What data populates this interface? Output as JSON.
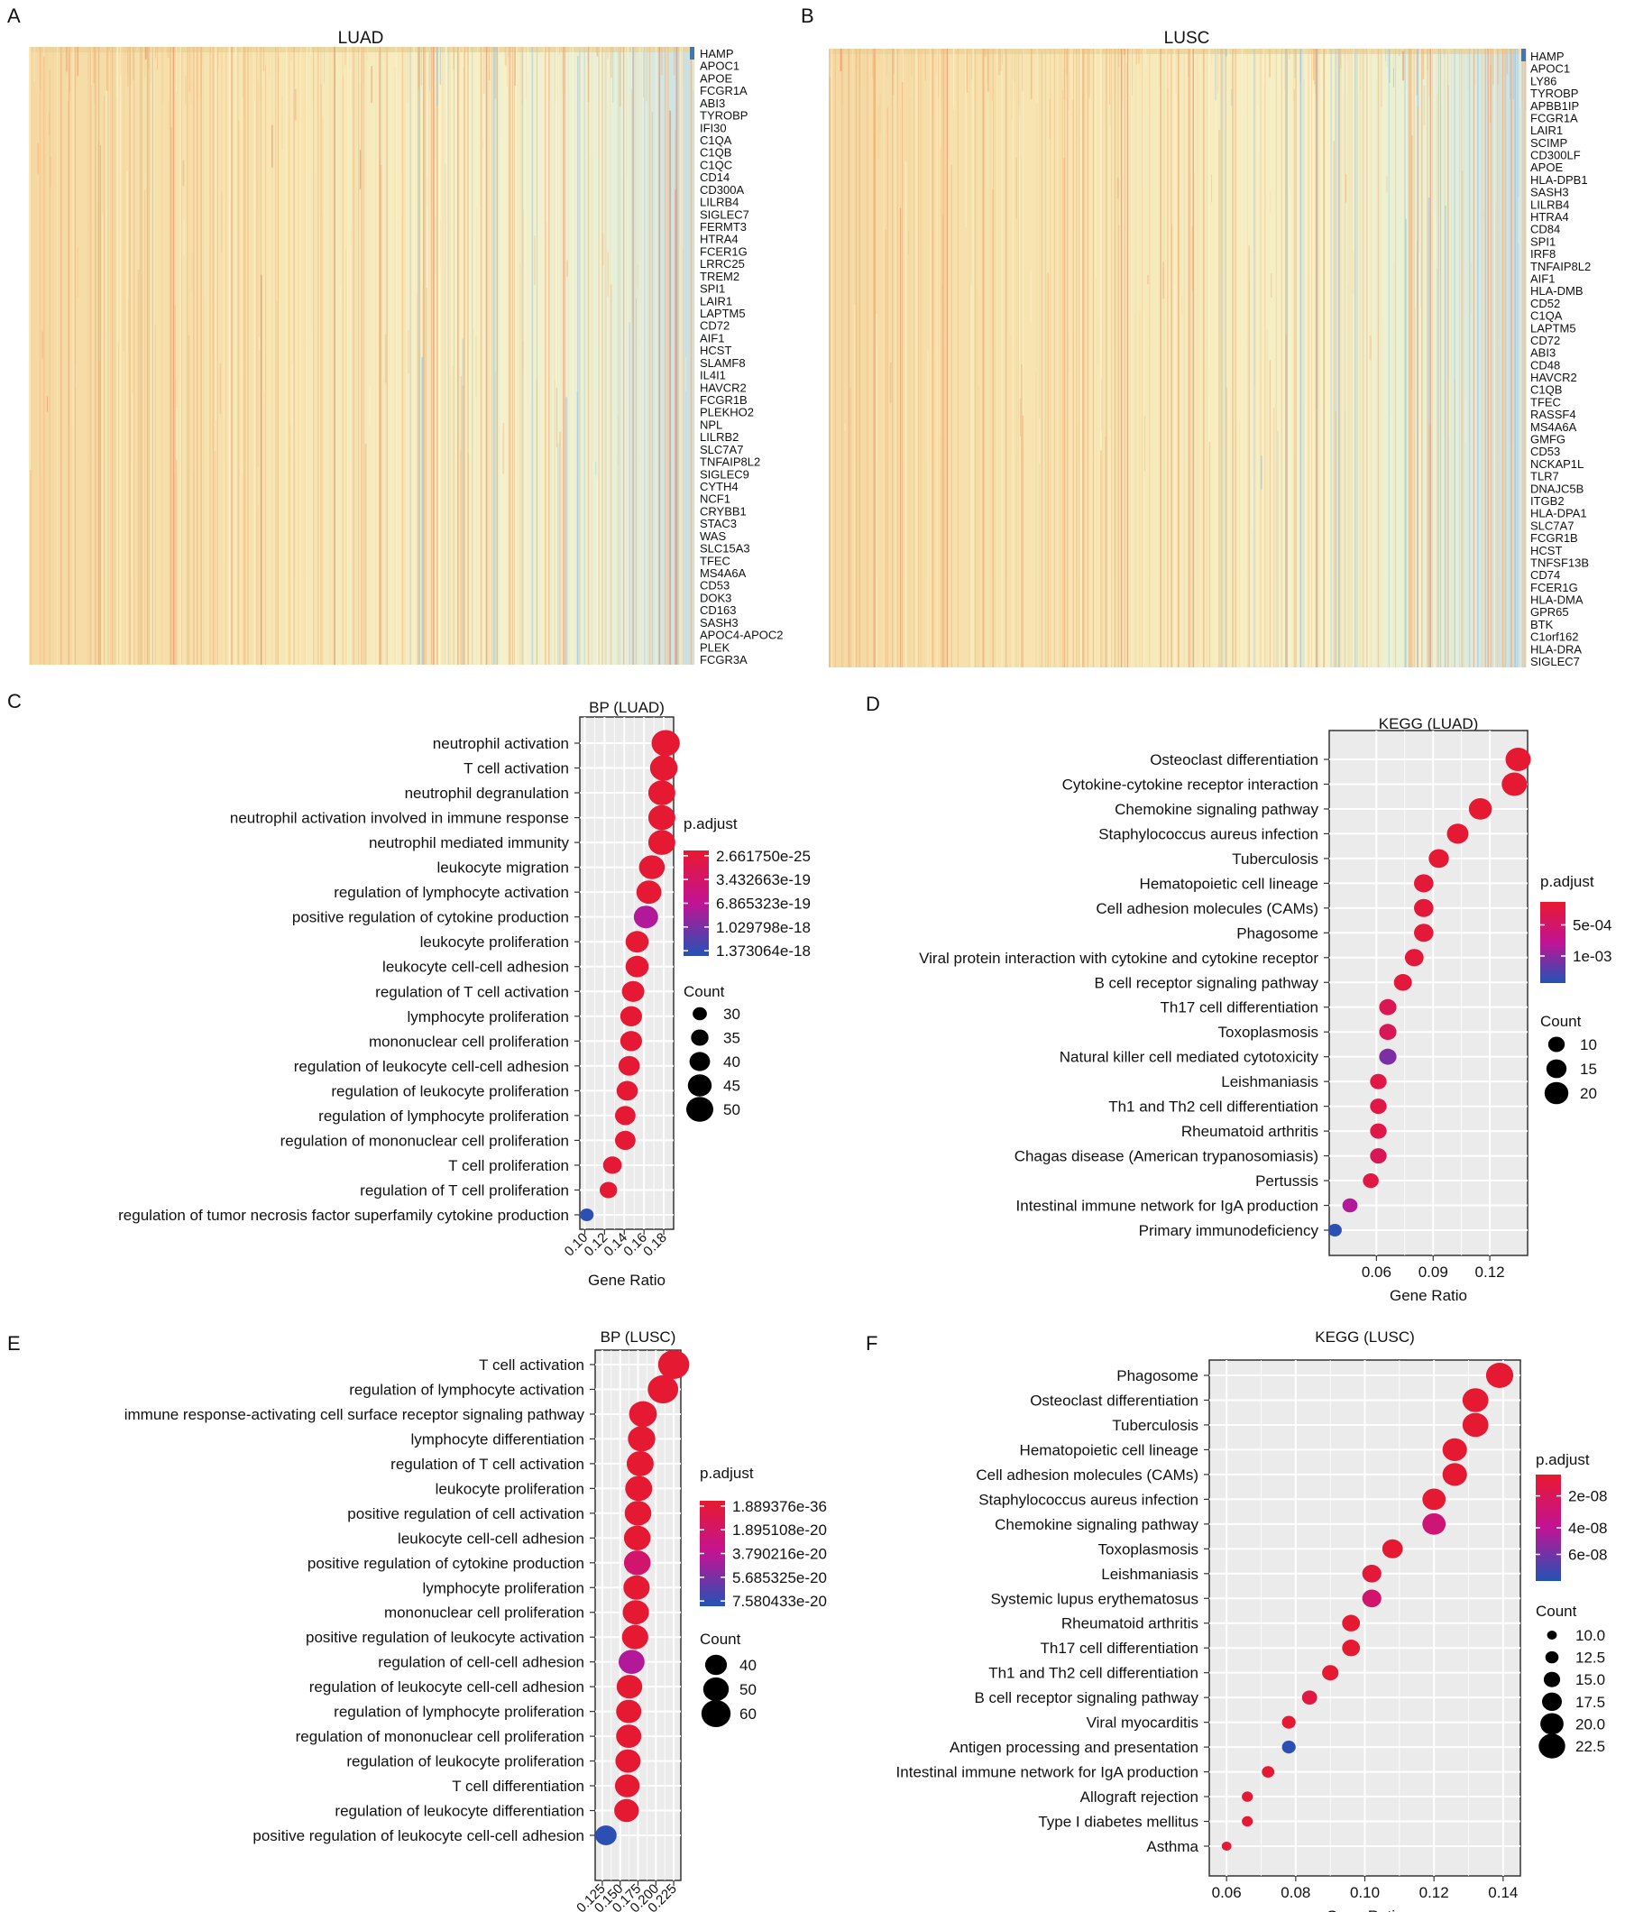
{
  "colors": {
    "low": "#e8192f",
    "mid": "#c11395",
    "high": "#2253b5",
    "panel_bg": "#ebebeb",
    "grid": "#ffffff"
  },
  "chart_data": [
    {
      "panel_label": "A",
      "type": "heatmap",
      "title": "LUAD",
      "genes": [
        "HAMP",
        "APOC1",
        "APOE",
        "FCGR1A",
        "ABI3",
        "TYROBP",
        "IFI30",
        "C1QA",
        "C1QB",
        "C1QC",
        "CD14",
        "CD300A",
        "LILRB4",
        "SIGLEC7",
        "FERMT3",
        "HTRA4",
        "FCER1G",
        "LRRC25",
        "TREM2",
        "SPI1",
        "LAIR1",
        "LAPTM5",
        "CD72",
        "AIF1",
        "HCST",
        "SLAMF8",
        "IL4I1",
        "HAVCR2",
        "FCGR1B",
        "PLEKHO2",
        "NPL",
        "LILRB2",
        "SLC7A7",
        "TNFAIP8L2",
        "SIGLEC9",
        "CYTH4",
        "NCF1",
        "CRYBB1",
        "STAC3",
        "WAS",
        "SLC15A3",
        "TFEC",
        "MS4A6A",
        "CD53",
        "DOK3",
        "CD163",
        "SASH3",
        "APOC4-APOC2",
        "PLEK",
        "FCGR3A"
      ]
    },
    {
      "panel_label": "B",
      "type": "heatmap",
      "title": "LUSC",
      "genes": [
        "HAMP",
        "APOC1",
        "LY86",
        "TYROBP",
        "APBB1IP",
        "FCGR1A",
        "LAIR1",
        "SCIMP",
        "CD300LF",
        "APOE",
        "HLA-DPB1",
        "SASH3",
        "LILRB4",
        "HTRA4",
        "CD84",
        "SPI1",
        "IRF8",
        "TNFAIP8L2",
        "AIF1",
        "HLA-DMB",
        "CD52",
        "C1QA",
        "LAPTM5",
        "CD72",
        "ABI3",
        "CD48",
        "HAVCR2",
        "C1QB",
        "TFEC",
        "RASSF4",
        "MS4A6A",
        "GMFG",
        "CD53",
        "NCKAP1L",
        "TLR7",
        "DNAJC5B",
        "ITGB2",
        "HLA-DPA1",
        "SLC7A7",
        "FCGR1B",
        "HCST",
        "TNFSF13B",
        "CD74",
        "FCER1G",
        "HLA-DMA",
        "GPR65",
        "BTK",
        "C1orf162",
        "HLA-DRA",
        "SIGLEC7"
      ]
    },
    {
      "panel_label": "C",
      "type": "scatter",
      "title": "BP (LUAD)",
      "xlabel": "Gene Ratio",
      "xlim": [
        0.095,
        0.19
      ],
      "xticks": [
        0.1,
        0.12,
        0.14,
        0.16,
        0.18
      ],
      "xtick_labels": [
        "0.10",
        "0.12",
        "0.14",
        "0.16",
        "0.18"
      ],
      "terms": [
        "neutrophil activation",
        "T cell activation",
        "neutrophil degranulation",
        "neutrophil activation involved in immune response",
        "neutrophil mediated immunity",
        "leukocyte migration",
        "regulation of lymphocyte activation",
        "positive regulation of cytokine production",
        "leukocyte proliferation",
        "leukocyte cell-cell adhesion",
        "regulation of T cell activation",
        "lymphocyte proliferation",
        "mononuclear cell proliferation",
        "regulation of leukocyte cell-cell adhesion",
        "regulation of leukocyte proliferation",
        "regulation of lymphocyte proliferation",
        "regulation of mononuclear cell proliferation",
        "T cell proliferation",
        "regulation of T cell proliferation",
        "regulation of tumor necrosis factor superfamily cytokine production"
      ],
      "gene_ratio": [
        0.182,
        0.18,
        0.178,
        0.178,
        0.178,
        0.168,
        0.165,
        0.162,
        0.153,
        0.153,
        0.149,
        0.147,
        0.147,
        0.145,
        0.143,
        0.141,
        0.141,
        0.128,
        0.124,
        0.102
      ],
      "count": [
        52,
        51,
        50,
        50,
        50,
        48,
        47,
        46,
        44,
        44,
        43,
        42,
        42,
        41,
        41,
        40,
        40,
        37,
        35,
        29
      ],
      "p_adjust_frac": [
        0.02,
        0.02,
        0.02,
        0.02,
        0.02,
        0.03,
        0.03,
        0.55,
        0.03,
        0.03,
        0.03,
        0.03,
        0.03,
        0.03,
        0.03,
        0.03,
        0.03,
        0.03,
        0.03,
        0.97
      ],
      "legend": {
        "color_title": "p.adjust",
        "color_labels": [
          "2.661750e-25",
          "3.432663e-19",
          "6.865323e-19",
          "1.029798e-18",
          "1.373064e-18"
        ],
        "size_title": "Count",
        "size_values": [
          30,
          35,
          40,
          45,
          50
        ]
      }
    },
    {
      "panel_label": "D",
      "type": "scatter",
      "title": "KEGG (LUAD)",
      "xlabel": "Gene Ratio",
      "xlim": [
        0.035,
        0.14
      ],
      "xticks": [
        0.06,
        0.09,
        0.12
      ],
      "xtick_labels": [
        "0.06",
        "0.09",
        "0.12"
      ],
      "terms": [
        "Osteoclast differentiation",
        "Cytokine-cytokine receptor interaction",
        "Chemokine signaling pathway",
        "Staphylococcus aureus infection",
        "Tuberculosis",
        "Hematopoietic cell lineage",
        "Cell adhesion molecules (CAMs)",
        "Phagosome",
        "Viral protein interaction with cytokine and cytokine receptor",
        "B cell receptor signaling pathway",
        "Th17 cell differentiation",
        "Toxoplasmosis",
        "Natural killer cell mediated cytotoxicity",
        "Leishmaniasis",
        "Th1 and Th2 cell differentiation",
        "Rheumatoid arthritis",
        "Chagas disease (American trypanosomiasis)",
        "Pertussis",
        "Intestinal immune network for IgA production",
        "Primary immunodeficiency"
      ],
      "gene_ratio": [
        0.135,
        0.133,
        0.115,
        0.103,
        0.093,
        0.085,
        0.085,
        0.085,
        0.08,
        0.074,
        0.066,
        0.066,
        0.066,
        0.061,
        0.061,
        0.061,
        0.061,
        0.057,
        0.046,
        0.038
      ],
      "count": [
        22,
        22,
        19,
        17,
        15,
        14,
        14,
        14,
        13,
        12,
        11,
        11,
        11,
        10,
        10,
        10,
        10,
        9,
        8,
        6
      ],
      "p_adjust_frac": [
        0.02,
        0.02,
        0.02,
        0.03,
        0.03,
        0.05,
        0.05,
        0.05,
        0.05,
        0.06,
        0.18,
        0.2,
        0.72,
        0.12,
        0.12,
        0.12,
        0.2,
        0.1,
        0.55,
        0.97
      ],
      "legend": {
        "color_title": "p.adjust",
        "color_labels": [
          "5e-04",
          "1e-03"
        ],
        "size_title": "Count",
        "size_values": [
          10,
          15,
          20
        ]
      }
    },
    {
      "panel_label": "E",
      "type": "scatter",
      "title": "BP (LUSC)",
      "xlabel": "Gene Ratio",
      "xlim": [
        0.115,
        0.235
      ],
      "xticks": [
        0.125,
        0.15,
        0.175,
        0.2,
        0.225
      ],
      "xtick_labels": [
        "0.125",
        "0.150",
        "0.175",
        "0.200",
        "0.225"
      ],
      "terms": [
        "T cell activation",
        "regulation of lymphocyte activation",
        "immune response-activating cell surface receptor signaling pathway",
        "lymphocyte differentiation",
        "regulation of T cell activation",
        "leukocyte proliferation",
        "positive regulation of cell activation",
        "leukocyte cell-cell adhesion",
        "positive regulation of cytokine production",
        "lymphocyte proliferation",
        "mononuclear cell proliferation",
        "positive regulation of leukocyte activation",
        "regulation of cell-cell adhesion",
        "regulation of leukocyte cell-cell adhesion",
        "regulation of lymphocyte proliferation",
        "regulation of mononuclear cell proliferation",
        "regulation of leukocyte proliferation",
        "T cell differentiation",
        "regulation of leukocyte differentiation",
        "positive regulation of leukocyte cell-cell adhesion"
      ],
      "gene_ratio": [
        0.225,
        0.21,
        0.182,
        0.18,
        0.178,
        0.176,
        0.175,
        0.174,
        0.174,
        0.173,
        0.172,
        0.171,
        0.166,
        0.163,
        0.162,
        0.162,
        0.161,
        0.16,
        0.159,
        0.13
      ],
      "count": [
        65,
        63,
        56,
        55,
        54,
        54,
        53,
        53,
        53,
        52,
        52,
        52,
        51,
        50,
        49,
        49,
        49,
        48,
        48,
        39
      ],
      "p_adjust_frac": [
        0.02,
        0.02,
        0.02,
        0.02,
        0.02,
        0.02,
        0.02,
        0.02,
        0.3,
        0.02,
        0.02,
        0.02,
        0.55,
        0.02,
        0.02,
        0.02,
        0.02,
        0.02,
        0.02,
        0.97
      ],
      "legend": {
        "color_title": "p.adjust",
        "color_labels": [
          "1.889376e-36",
          "1.895108e-20",
          "3.790216e-20",
          "5.685325e-20",
          "7.580433e-20"
        ],
        "size_title": "Count",
        "size_values": [
          40,
          50,
          60
        ]
      }
    },
    {
      "panel_label": "F",
      "type": "scatter",
      "title": "KEGG (LUSC)",
      "xlabel": "Gene Ratio",
      "xlim": [
        0.055,
        0.145
      ],
      "xticks": [
        0.06,
        0.08,
        0.1,
        0.12,
        0.14
      ],
      "xtick_labels": [
        "0.06",
        "0.08",
        "0.10",
        "0.12",
        "0.14"
      ],
      "terms": [
        "Phagosome",
        "Osteoclast differentiation",
        "Tuberculosis",
        "Hematopoietic cell lineage",
        "Cell adhesion molecules (CAMs)",
        "Staphylococcus aureus infection",
        "Chemokine signaling pathway",
        "Toxoplasmosis",
        "Leishmaniasis",
        "Systemic lupus erythematosus",
        "Rheumatoid arthritis",
        "Th17 cell differentiation",
        "Th1 and Th2 cell differentiation",
        "B cell receptor signaling pathway",
        "Viral myocarditis",
        "Antigen processing and presentation",
        "Intestinal immune network for IgA production",
        "Allograft rejection",
        "Type I diabetes mellitus",
        "Asthma"
      ],
      "gene_ratio": [
        0.139,
        0.132,
        0.132,
        0.126,
        0.126,
        0.12,
        0.12,
        0.108,
        0.102,
        0.102,
        0.096,
        0.096,
        0.09,
        0.084,
        0.078,
        0.078,
        0.072,
        0.066,
        0.066,
        0.06
      ],
      "count": [
        23,
        22,
        22,
        21,
        21,
        20,
        20,
        18,
        17,
        17,
        16,
        16,
        15,
        14,
        13,
        13,
        12,
        11,
        11,
        10
      ],
      "p_adjust_frac": [
        0.02,
        0.02,
        0.02,
        0.02,
        0.02,
        0.02,
        0.35,
        0.02,
        0.05,
        0.3,
        0.02,
        0.02,
        0.02,
        0.1,
        0.02,
        0.97,
        0.03,
        0.03,
        0.03,
        0.03
      ],
      "legend": {
        "color_title": "p.adjust",
        "color_labels": [
          "2e-08",
          "4e-08",
          "6e-08"
        ],
        "size_title": "Count",
        "size_values": [
          "10.0",
          "12.5",
          "15.0",
          "17.5",
          "20.0",
          "22.5"
        ]
      }
    }
  ]
}
